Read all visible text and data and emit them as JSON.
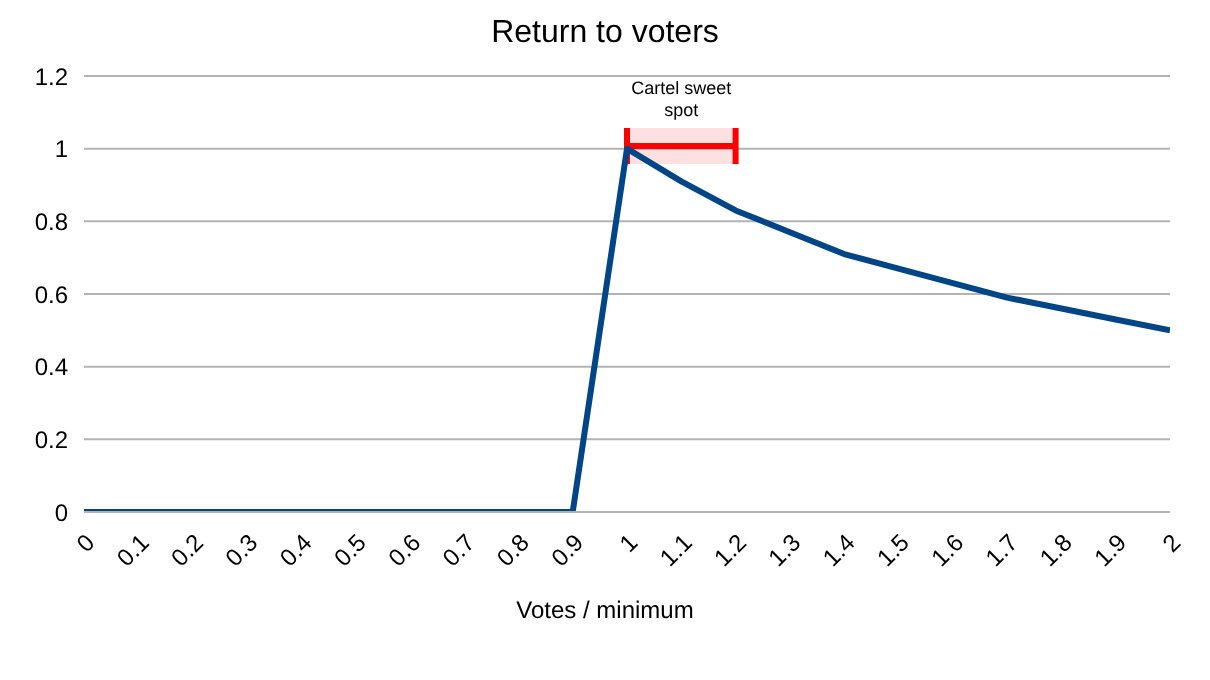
{
  "chart_data": {
    "type": "line",
    "title": "Return to voters",
    "xlabel": "Votes / minimum",
    "categories": [
      "0",
      "0.1",
      "0.2",
      "0.3",
      "0.4",
      "0.5",
      "0.6",
      "0.7",
      "0.8",
      "0.9",
      "1",
      "1.1",
      "1.2",
      "1.3",
      "1.4",
      "1.5",
      "1.6",
      "1.7",
      "1.8",
      "1.9",
      "2"
    ],
    "series": [
      {
        "color": "#004586",
        "values": [
          0,
          0,
          0,
          0,
          0,
          0,
          0,
          0,
          0,
          0,
          1,
          0.91,
          0.83,
          0.77,
          0.71,
          0.67,
          0.63,
          0.59,
          0.56,
          0.53,
          0.5
        ]
      }
    ],
    "ylim": [
      0,
      1.2
    ],
    "yticks": [
      0,
      0.2,
      0.4,
      0.6,
      0.8,
      1,
      1.2
    ],
    "grid": "y",
    "legend": false,
    "marker": "none",
    "line_style": "solid",
    "bands": [
      {
        "axis": "x",
        "from": "1",
        "to": "1.2",
        "label": "Cartel sweet spot",
        "color": "#ff0000"
      }
    ]
  }
}
